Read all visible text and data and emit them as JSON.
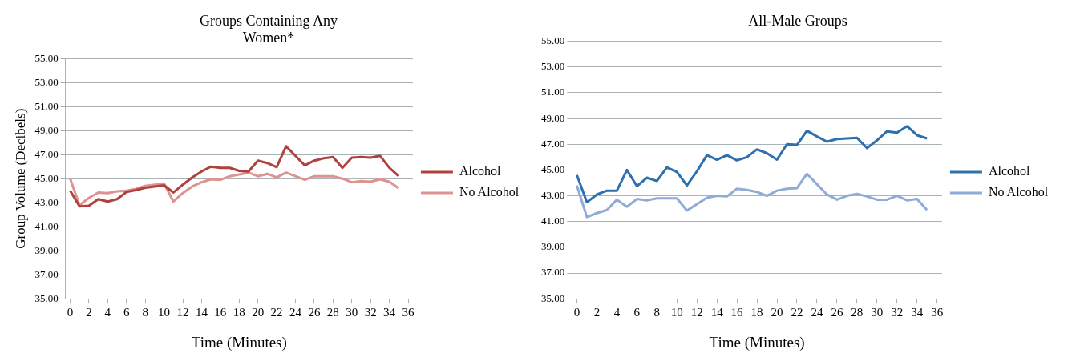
{
  "chart_data": [
    {
      "type": "line",
      "title": "Groups Containing Any Women*",
      "xlabel": "Time (Minutes)",
      "ylabel": "Group Volume (Decibels)",
      "x": [
        0,
        1,
        2,
        3,
        4,
        5,
        6,
        7,
        8,
        9,
        10,
        11,
        12,
        13,
        14,
        15,
        16,
        17,
        18,
        19,
        20,
        21,
        22,
        23,
        24,
        25,
        26,
        27,
        28,
        29,
        30,
        31,
        32,
        33,
        34,
        35
      ],
      "series": [
        {
          "name": "Alcohol",
          "color": "#b0413e",
          "values": [
            44.0,
            42.7,
            42.75,
            43.3,
            43.1,
            43.3,
            43.9,
            44.05,
            44.25,
            44.35,
            44.45,
            43.85,
            44.5,
            45.1,
            45.6,
            46.0,
            45.9,
            45.9,
            45.65,
            45.6,
            46.5,
            46.3,
            45.95,
            47.7,
            46.9,
            46.1,
            46.5,
            46.7,
            46.8,
            45.9,
            46.75,
            46.8,
            46.75,
            46.9,
            45.9,
            45.2
          ]
        },
        {
          "name": "No Alcohol",
          "color": "#dc9391",
          "values": [
            45.0,
            42.8,
            43.4,
            43.85,
            43.8,
            43.95,
            44.0,
            44.15,
            44.4,
            44.5,
            44.6,
            43.1,
            43.8,
            44.35,
            44.7,
            44.95,
            44.9,
            45.2,
            45.35,
            45.5,
            45.2,
            45.4,
            45.1,
            45.5,
            45.2,
            44.9,
            45.2,
            45.2,
            45.2,
            45.0,
            44.7,
            44.8,
            44.75,
            44.95,
            44.75,
            44.2
          ]
        }
      ],
      "xlim": [
        -0.5,
        36.5
      ],
      "xticks": [
        0,
        2,
        4,
        6,
        8,
        10,
        12,
        14,
        16,
        18,
        20,
        22,
        24,
        26,
        28,
        30,
        32,
        34,
        36
      ],
      "ylim": [
        35,
        55
      ],
      "yticks": [
        {
          "value": 35,
          "label": "35.00"
        },
        {
          "value": 37,
          "label": "37.00"
        },
        {
          "value": 39,
          "label": "39.00"
        },
        {
          "value": 41,
          "label": "41.00"
        },
        {
          "value": 43,
          "label": "43.00"
        },
        {
          "value": 45,
          "label": "45.00"
        },
        {
          "value": 47,
          "label": "47.00"
        },
        {
          "value": 49,
          "label": "49.00"
        },
        {
          "value": 51,
          "label": "51.00"
        },
        {
          "value": 53,
          "label": "53.00"
        },
        {
          "value": 55,
          "label": "55.00"
        }
      ],
      "grid": "y",
      "legend": "right",
      "marker": "none",
      "line_style": "solid"
    },
    {
      "type": "line",
      "title": "All-Male Groups",
      "xlabel": "Time (Minutes)",
      "x": [
        0,
        1,
        2,
        3,
        4,
        5,
        6,
        7,
        8,
        9,
        10,
        11,
        12,
        13,
        14,
        15,
        16,
        17,
        18,
        19,
        20,
        21,
        22,
        23,
        24,
        25,
        26,
        27,
        28,
        29,
        30,
        31,
        32,
        33,
        34,
        35
      ],
      "series": [
        {
          "name": "Alcohol",
          "color": "#2e6fad",
          "values": [
            44.6,
            42.5,
            43.1,
            43.4,
            43.4,
            45.0,
            43.75,
            44.4,
            44.15,
            45.2,
            44.85,
            43.8,
            44.9,
            46.15,
            45.8,
            46.15,
            45.75,
            46.0,
            46.6,
            46.3,
            45.8,
            47.0,
            46.95,
            48.05,
            47.6,
            47.2,
            47.4,
            47.45,
            47.5,
            46.7,
            47.3,
            48.0,
            47.9,
            48.4,
            47.7,
            47.45
          ]
        },
        {
          "name": "No Alcohol",
          "color": "#8fabd6",
          "values": [
            43.8,
            41.35,
            41.65,
            41.9,
            42.7,
            42.15,
            42.75,
            42.65,
            42.8,
            42.8,
            42.8,
            41.85,
            42.35,
            42.85,
            43.0,
            42.95,
            43.55,
            43.45,
            43.3,
            43.0,
            43.4,
            43.55,
            43.6,
            44.7,
            43.9,
            43.1,
            42.7,
            43.0,
            43.15,
            42.95,
            42.7,
            42.7,
            43.0,
            42.65,
            42.75,
            41.9
          ]
        }
      ],
      "xlim": [
        -0.5,
        36.5
      ],
      "xticks": [
        0,
        2,
        4,
        6,
        8,
        10,
        12,
        14,
        16,
        18,
        20,
        22,
        24,
        26,
        28,
        30,
        32,
        34,
        36
      ],
      "ylim": [
        35,
        55
      ],
      "yticks": [
        {
          "value": 35,
          "label": "35.00"
        },
        {
          "value": 37,
          "label": "37.00"
        },
        {
          "value": 39,
          "label": "39.00"
        },
        {
          "value": 41,
          "label": "41.00"
        },
        {
          "value": 43,
          "label": "43.00"
        },
        {
          "value": 45,
          "label": "45.00"
        },
        {
          "value": 47,
          "label": "47.00"
        },
        {
          "value": 49,
          "label": "49.00"
        },
        {
          "value": 51,
          "label": "51.00"
        },
        {
          "value": 53,
          "label": "53.00"
        },
        {
          "value": 55,
          "label": "55.00"
        }
      ],
      "grid": "y",
      "legend": "right",
      "marker": "none",
      "line_style": "solid"
    }
  ]
}
